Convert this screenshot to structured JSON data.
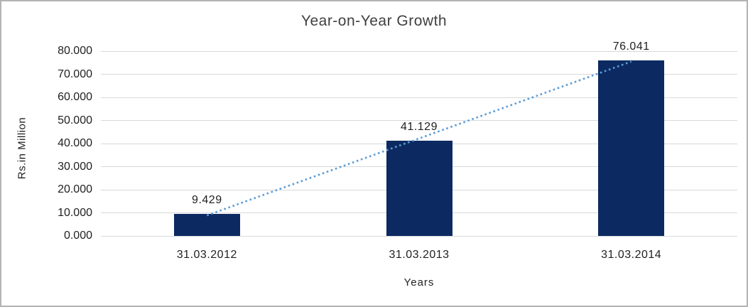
{
  "chart": {
    "title": "Year-on-Year Growth",
    "y_axis_title": "Rs.in Million",
    "x_axis_title": "Years"
  },
  "chart_data": {
    "type": "bar",
    "title": "Year-on-Year Growth",
    "xlabel": "Years",
    "ylabel": "Rs.in Million",
    "categories": [
      "31.03.2012",
      "31.03.2013",
      "31.03.2014"
    ],
    "values": [
      9.429,
      41.129,
      76.041
    ],
    "data_labels": [
      "9.429",
      "41.129",
      "76.041"
    ],
    "ytick_labels": [
      "0.000",
      "10.000",
      "20.000",
      "30.000",
      "40.000",
      "50.000",
      "60.000",
      "70.000",
      "80.000"
    ],
    "ylim": [
      0,
      80
    ],
    "grid": true,
    "legend": "none",
    "trendline": {
      "type": "linear",
      "style": "dotted"
    },
    "colors": {
      "bar": "#0c2a61",
      "trendline": "#5b9bd5",
      "gridline": "#d9d9d9",
      "frame_border": "#b3b3b3",
      "text": "#1f1f1f",
      "title": "#404040"
    }
  }
}
